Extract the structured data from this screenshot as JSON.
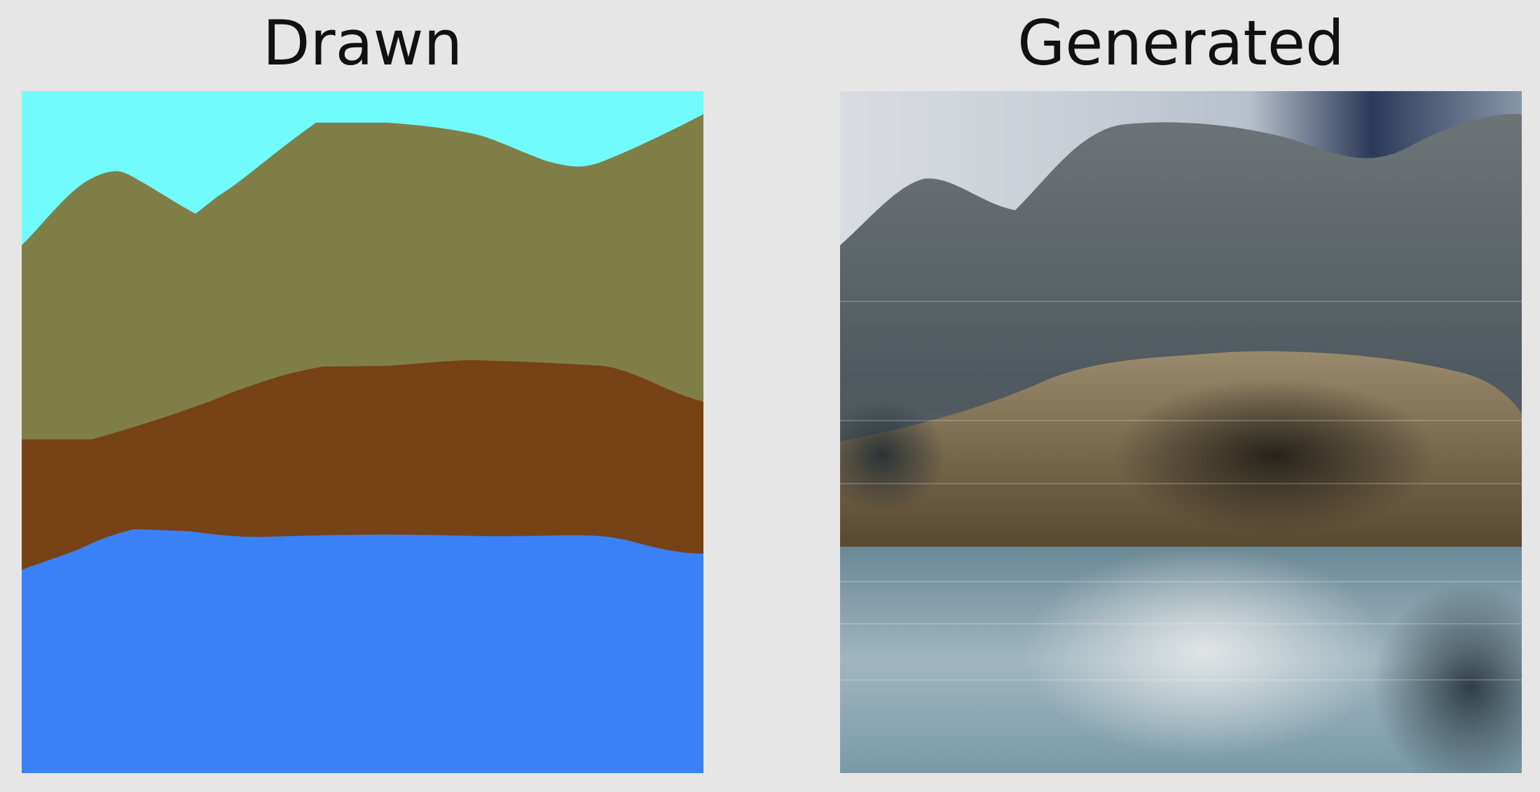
{
  "figure": {
    "panels": [
      {
        "title": "Drawn",
        "regions": [
          {
            "name": "sky",
            "color": "#71fbfd"
          },
          {
            "name": "mountain",
            "color": "#7f7e47"
          },
          {
            "name": "ground",
            "color": "#784217"
          },
          {
            "name": "water",
            "color": "#3a80f7"
          }
        ]
      },
      {
        "title": "Generated"
      }
    ]
  }
}
